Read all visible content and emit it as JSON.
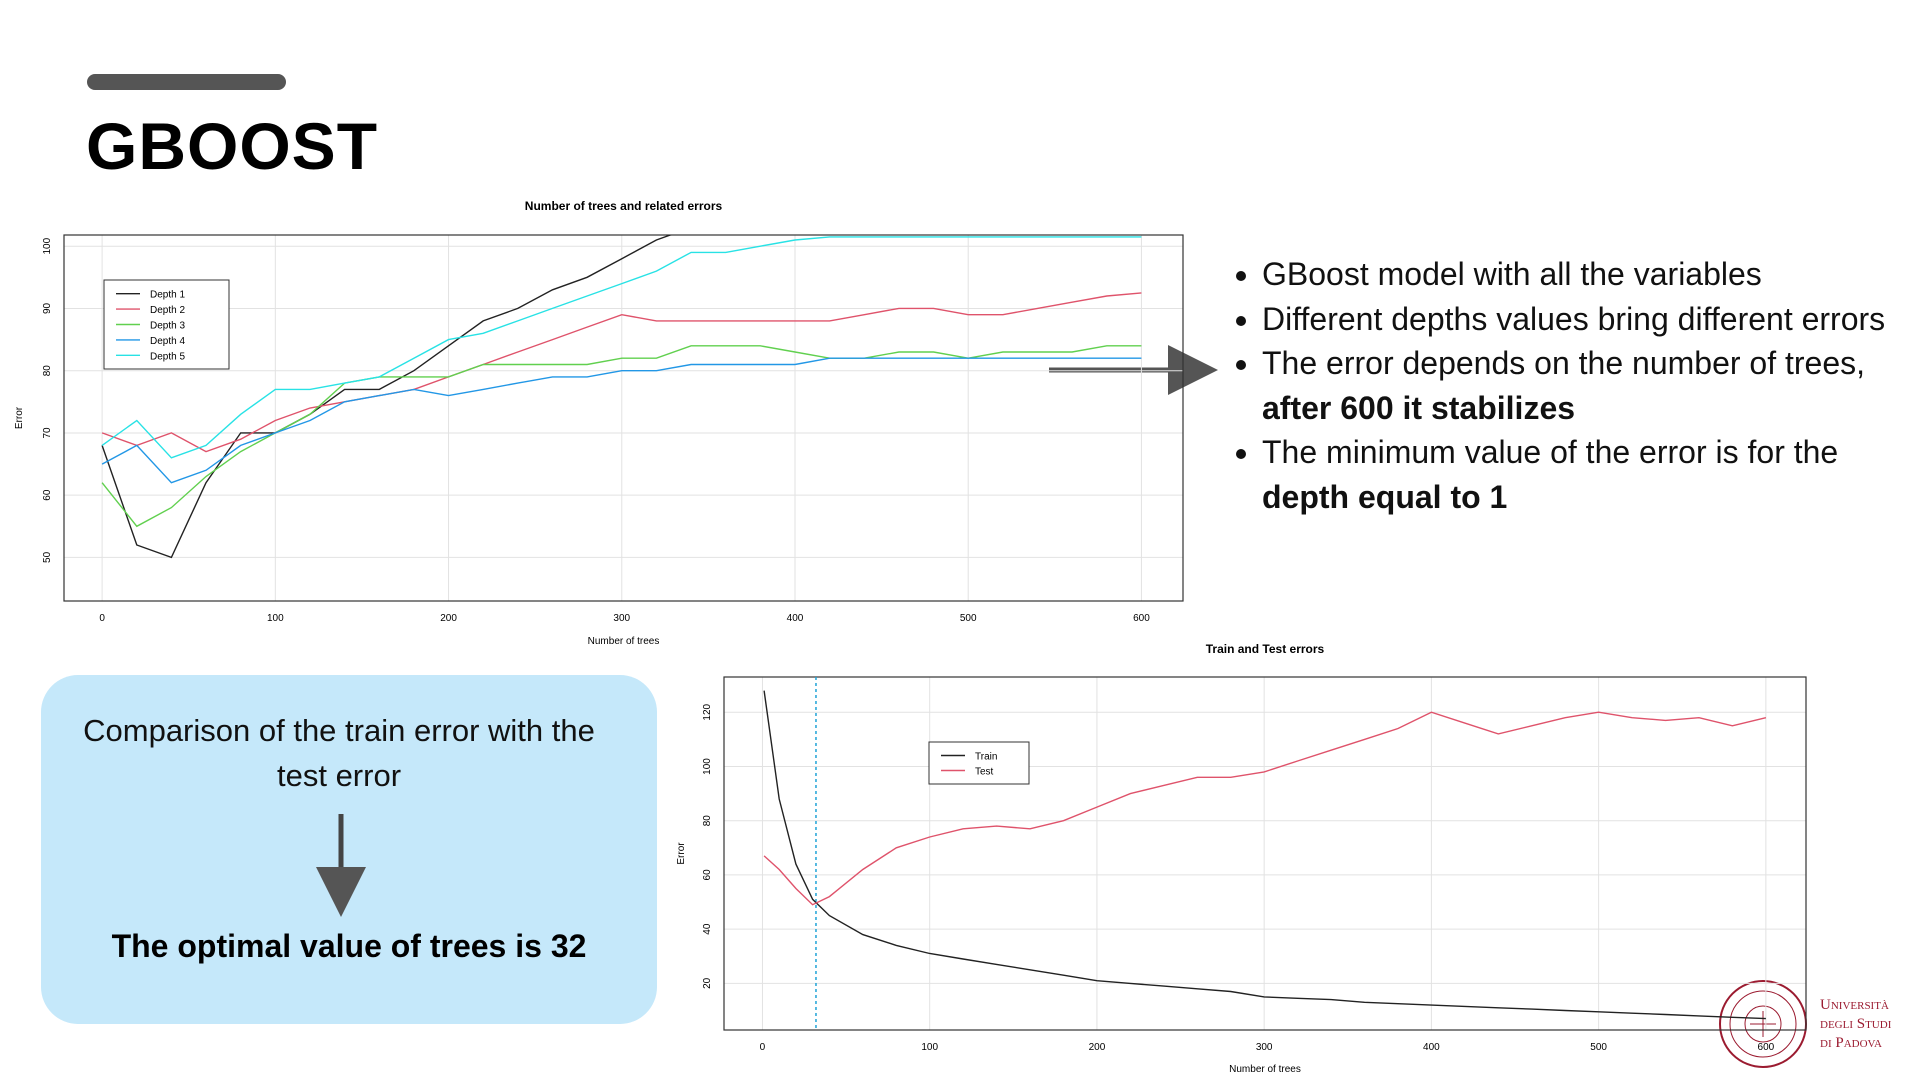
{
  "header": {
    "title": "GBOOST"
  },
  "bullets": [
    [
      {
        "text": "GBoost model with all the variables",
        "bold": false
      }
    ],
    [
      {
        "text": "Different depths values bring different errors",
        "bold": false
      }
    ],
    [
      {
        "text": "The error depends on the number of trees, ",
        "bold": false
      },
      {
        "text": "after 600 it stabilizes",
        "bold": true
      }
    ],
    [
      {
        "text": "The minimum value of the error is for the ",
        "bold": false
      },
      {
        "text": "depth equal to 1",
        "bold": true
      }
    ]
  ],
  "callout": {
    "text": "Comparison of the train error with the test error",
    "conclusion": "The optimal value of trees is 32"
  },
  "logo": {
    "lines": [
      "Università",
      "degli Studi",
      "di Padova"
    ]
  },
  "chart_data": [
    {
      "type": "line",
      "title": "Number of trees and related errors",
      "x_label": "Number of trees",
      "y_label": "Error",
      "x": [
        0,
        20,
        40,
        60,
        80,
        100,
        120,
        140,
        160,
        180,
        200,
        220,
        240,
        260,
        280,
        300,
        320,
        340,
        360,
        380,
        400,
        420,
        440,
        460,
        480,
        500,
        520,
        540,
        560,
        580,
        600
      ],
      "series": [
        {
          "name": "Depth 1",
          "color": "#222222",
          "values": [
            68,
            52,
            50,
            62,
            70,
            70,
            73,
            77,
            77,
            80,
            84,
            88,
            90,
            93,
            95,
            98,
            101,
            103,
            null,
            null,
            null,
            null,
            null,
            null,
            null,
            null,
            null,
            null,
            null,
            null,
            null
          ]
        },
        {
          "name": "Depth 2",
          "color": "#df536b",
          "values": [
            70,
            68,
            70,
            67,
            69,
            72,
            74,
            75,
            76,
            77,
            79,
            81,
            83,
            85,
            87,
            89,
            88,
            88,
            88,
            88,
            88,
            88,
            89,
            90,
            90,
            89,
            89,
            90,
            91,
            92,
            92.5
          ]
        },
        {
          "name": "Depth 3",
          "color": "#61d04f",
          "values": [
            62,
            55,
            58,
            63,
            67,
            70,
            73,
            78,
            79,
            79,
            79,
            81,
            81,
            81,
            81,
            82,
            82,
            84,
            84,
            84,
            83,
            82,
            82,
            83,
            83,
            82,
            83,
            83,
            83,
            84,
            84
          ]
        },
        {
          "name": "Depth 4",
          "color": "#2297e6",
          "values": [
            65,
            68,
            62,
            64,
            68,
            70,
            72,
            75,
            76,
            77,
            76,
            77,
            78,
            79,
            79,
            80,
            80,
            81,
            81,
            81,
            81,
            82,
            82,
            82,
            82,
            82,
            82,
            82,
            82,
            82,
            82
          ]
        },
        {
          "name": "Depth 5",
          "color": "#28e2e5",
          "values": [
            68,
            72,
            66,
            68,
            73,
            77,
            77,
            78,
            79,
            82,
            85,
            86,
            88,
            90,
            92,
            94,
            96,
            99,
            99,
            100,
            101,
            101.5,
            101.5,
            101.5,
            101.5,
            101.5,
            101.5,
            101.5,
            101.5,
            101.5,
            101.5
          ]
        }
      ],
      "xlim": [
        -22,
        624
      ],
      "ylim": [
        43,
        101.8
      ],
      "xticks": [
        0,
        100,
        200,
        300,
        400,
        500,
        600
      ],
      "yticks": [
        50,
        60,
        70,
        80,
        90,
        100
      ],
      "grid": true,
      "legend": "topleft"
    },
    {
      "type": "line",
      "title": "Train and Test errors",
      "x_label": "Number of trees",
      "y_label": "Error",
      "x": [
        1,
        10,
        20,
        30,
        40,
        60,
        80,
        100,
        120,
        140,
        160,
        180,
        200,
        220,
        240,
        260,
        280,
        300,
        320,
        340,
        360,
        380,
        400,
        420,
        440,
        460,
        480,
        500,
        520,
        540,
        560,
        580,
        600
      ],
      "series": [
        {
          "name": "Train",
          "color": "#222222",
          "values": [
            128,
            88,
            64,
            51,
            45,
            38,
            34,
            31,
            29,
            27,
            25,
            23,
            21,
            20,
            19,
            18,
            17,
            15,
            14.5,
            14,
            13,
            12.5,
            12,
            11.5,
            11,
            10.5,
            10,
            9.5,
            9,
            8.5,
            8,
            7.5,
            7
          ]
        },
        {
          "name": "Test",
          "color": "#df536b",
          "values": [
            67,
            62,
            55,
            49,
            52,
            62,
            70,
            74,
            77,
            78,
            77,
            80,
            85,
            90,
            93,
            96,
            96,
            98,
            102,
            106,
            110,
            114,
            120,
            116,
            112,
            115,
            118,
            120,
            118,
            117,
            118,
            115,
            118
          ]
        }
      ],
      "vline": 32,
      "vline_color": "#1fa4d8",
      "xlim": [
        -23,
        624
      ],
      "ylim": [
        2.8,
        133
      ],
      "xticks": [
        0,
        100,
        200,
        300,
        400,
        500,
        600
      ],
      "yticks": [
        20,
        40,
        60,
        80,
        100,
        120
      ],
      "grid": true,
      "legend": "topleft"
    }
  ]
}
